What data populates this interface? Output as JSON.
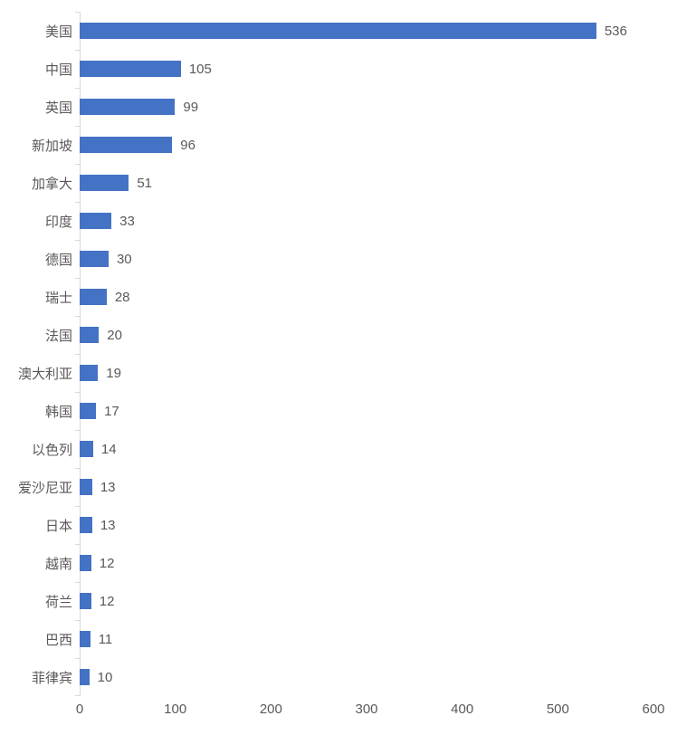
{
  "chart_data": {
    "type": "bar",
    "orientation": "horizontal",
    "title": "",
    "xlabel": "",
    "ylabel": "",
    "categories": [
      "美国",
      "中国",
      "英国",
      "新加坡",
      "加拿大",
      "印度",
      "德国",
      "瑞士",
      "法国",
      "澳大利亚",
      "韩国",
      "以色列",
      "爱沙尼亚",
      "日本",
      "越南",
      "荷兰",
      "巴西",
      "菲律宾"
    ],
    "values": [
      536,
      105,
      99,
      96,
      51,
      33,
      30,
      28,
      20,
      19,
      17,
      14,
      13,
      13,
      12,
      12,
      11,
      10
    ],
    "data_labels_shown": true,
    "xlim": [
      0,
      600
    ],
    "x_ticks": [
      0,
      100,
      200,
      300,
      400,
      500,
      600
    ],
    "grid": false,
    "legend": null,
    "colors": {
      "bar": "#4472C4",
      "category_label_text": "#595959",
      "value_label_text": "#595959",
      "axis_tick_text": "#595959",
      "axis_line": "#D9D9D9"
    }
  }
}
